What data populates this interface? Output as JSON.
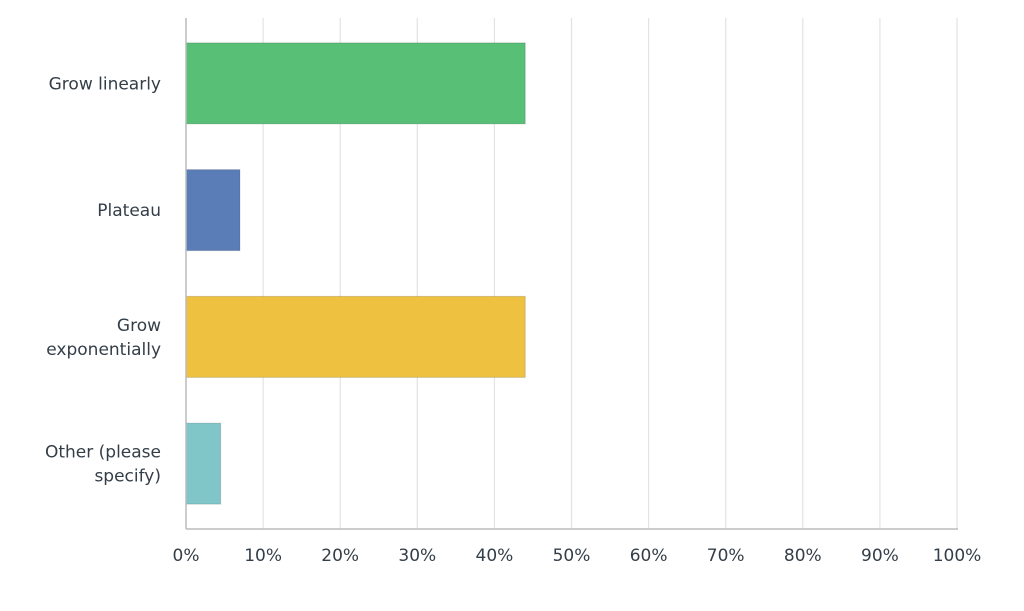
{
  "chart_data": {
    "type": "bar",
    "orientation": "horizontal",
    "categories": [
      [
        "Grow linearly"
      ],
      [
        "Plateau"
      ],
      [
        "Grow",
        "exponentially"
      ],
      [
        "Other (please",
        "specify)"
      ]
    ],
    "values": [
      44,
      7,
      44,
      4.5
    ],
    "colors": [
      "#57bf76",
      "#5b7db7",
      "#efc141",
      "#80c6c9"
    ],
    "xlim": [
      0,
      100
    ],
    "x_ticks": [
      "0%",
      "10%",
      "20%",
      "30%",
      "40%",
      "50%",
      "60%",
      "70%",
      "80%",
      "90%",
      "100%"
    ],
    "grid": true,
    "title": "",
    "xlabel": "",
    "ylabel": ""
  }
}
